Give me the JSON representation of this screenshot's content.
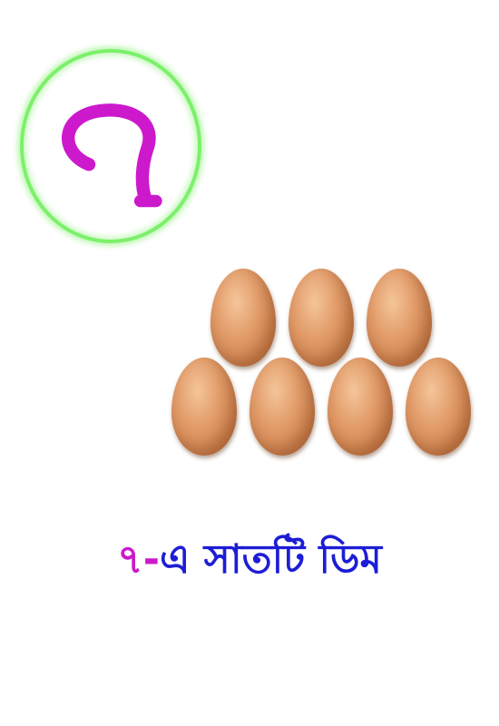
{
  "numeral": {
    "glyph": "৭",
    "color": "#cc19cc",
    "ring_color": "#7cf06a"
  },
  "eggs": {
    "count": 7,
    "color": "#d98d5a"
  },
  "caption": {
    "number": "৭-",
    "text": "এ সাতটি ডিম",
    "number_color": "#cc19cc",
    "text_color": "#1d1dd6"
  }
}
